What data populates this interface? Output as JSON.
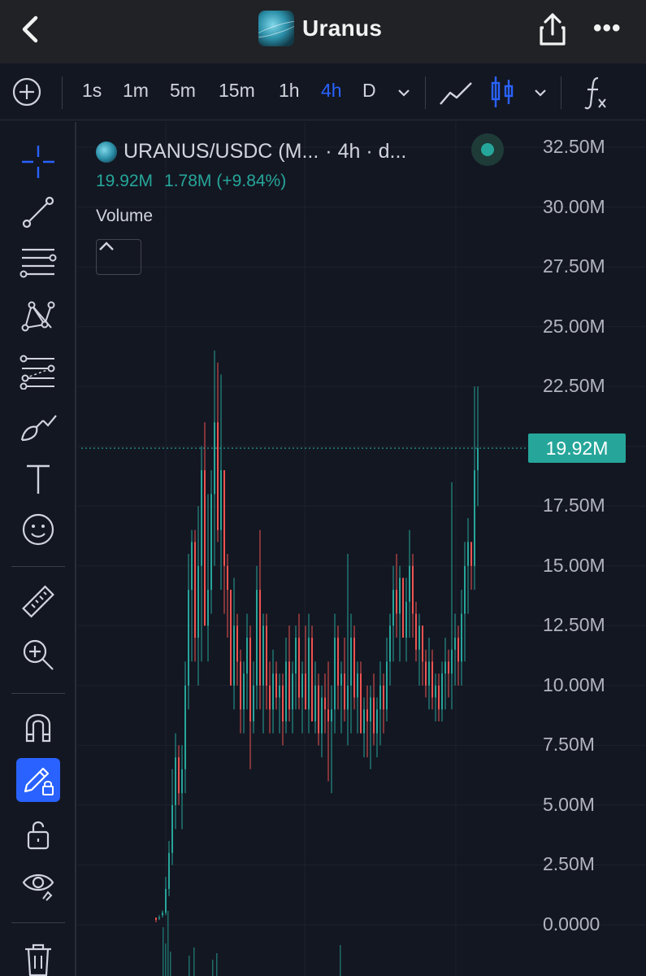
{
  "header": {
    "title": "Uranus",
    "more_label": "•••"
  },
  "toolbar": {
    "intervals": [
      {
        "label": "1s",
        "active": false
      },
      {
        "label": "1m",
        "active": false
      },
      {
        "label": "5m",
        "active": false
      },
      {
        "label": "15m",
        "active": false
      },
      {
        "label": "1h",
        "active": false
      },
      {
        "label": "4h",
        "active": true
      },
      {
        "label": "D",
        "active": false
      }
    ],
    "accent_color": "#2962ff"
  },
  "left_tools": [
    "crosshair-icon",
    "trend-line-icon",
    "horizontal-lines-icon",
    "pattern-icon",
    "fib-icon",
    "brush-icon",
    "text-icon",
    "emoji-icon",
    "ruler-icon",
    "zoom-in-icon",
    "magnet-icon",
    "lock-drawing-icon",
    "unlock-icon",
    "eye-icon",
    "trash-icon"
  ],
  "legend": {
    "symbol": "URANUS/USDC (M...",
    "interval": "· 4h · d...",
    "value": "19.92M",
    "change": "1.78M",
    "change_pct": "(+9.84%)",
    "indicator": "Volume"
  },
  "chart_data": {
    "type": "bar",
    "ylabel": "",
    "ylim": [
      0,
      32500000
    ],
    "yticks": [
      "32.50M",
      "30.00M",
      "27.50M",
      "25.00M",
      "22.50M",
      "20.00M",
      "17.50M",
      "15.00M",
      "12.50M",
      "10.00M",
      "7.50M",
      "5.00M",
      "2.50M",
      "0.0000"
    ],
    "last_value_label": "19.92M",
    "last_value": 19920000,
    "up_color": "#26a69a",
    "down_color": "#ef5350",
    "grid": true,
    "candles_M": [
      [
        0.3,
        0.1,
        0.2,
        0.3
      ],
      [
        0.3,
        0.2,
        0.3,
        0.4
      ],
      [
        0.4,
        0.3,
        0.5,
        0.6
      ],
      [
        0.5,
        0.4,
        1.5,
        2
      ],
      [
        1.5,
        1.2,
        3,
        3.5
      ],
      [
        3,
        2.5,
        5,
        6.5
      ],
      [
        5,
        4,
        7,
        8
      ],
      [
        7,
        5,
        5.5,
        7.5
      ],
      [
        5.5,
        4,
        6.5,
        7.5
      ],
      [
        6.5,
        5.5,
        10,
        11
      ],
      [
        10,
        9,
        14,
        15.5
      ],
      [
        14,
        11,
        16,
        16.5
      ],
      [
        16,
        11,
        12,
        16.5
      ],
      [
        12,
        10,
        15,
        17.5
      ],
      [
        15,
        11,
        19,
        20
      ],
      [
        19,
        13,
        12.5,
        21
      ],
      [
        12.5,
        11,
        14,
        18
      ],
      [
        14,
        13,
        18,
        19
      ],
      [
        18,
        15,
        21,
        24
      ],
      [
        21,
        16,
        16.5,
        23.5
      ],
      [
        16.5,
        14,
        19,
        23
      ],
      [
        19,
        13,
        15,
        16
      ],
      [
        15,
        12,
        14,
        15.5
      ],
      [
        14,
        11,
        10,
        14
      ],
      [
        10,
        9,
        12.5,
        14.5
      ],
      [
        12.5,
        10,
        11,
        13
      ],
      [
        11,
        8,
        9,
        11.5
      ],
      [
        9,
        8,
        10.5,
        11
      ],
      [
        10.5,
        9,
        12,
        13
      ],
      [
        12,
        6.5,
        8.5,
        12.5
      ],
      [
        8.5,
        8,
        10,
        11
      ],
      [
        10,
        9,
        14,
        15
      ],
      [
        14,
        9,
        10,
        16.5
      ],
      [
        10,
        8,
        12.5,
        13
      ],
      [
        12.5,
        9,
        10,
        13
      ],
      [
        10,
        8,
        9,
        11
      ],
      [
        9,
        8,
        10.5,
        11.5
      ],
      [
        10.5,
        9,
        9.5,
        11
      ],
      [
        9.5,
        8,
        10,
        10.5
      ],
      [
        10,
        7.5,
        8.5,
        10.5
      ],
      [
        8.5,
        8,
        11,
        12
      ],
      [
        11,
        8.5,
        9,
        12.5
      ],
      [
        9,
        8,
        10.5,
        11
      ],
      [
        10.5,
        9,
        12,
        12.5
      ],
      [
        12,
        9,
        9.5,
        13
      ],
      [
        9.5,
        8,
        10.5,
        11
      ],
      [
        10.5,
        9,
        9,
        12.5
      ],
      [
        9,
        8,
        12,
        13
      ],
      [
        12,
        9,
        8.5,
        12.5
      ],
      [
        8.5,
        8,
        10,
        11
      ],
      [
        10,
        7.5,
        8,
        10.5
      ],
      [
        8,
        7,
        9.5,
        10
      ],
      [
        9.5,
        8,
        9,
        10.5
      ],
      [
        9,
        6,
        8.5,
        11
      ],
      [
        8.5,
        5.5,
        9,
        10
      ],
      [
        9,
        8,
        12,
        13
      ],
      [
        12,
        9,
        10,
        12.5
      ],
      [
        10,
        8,
        10.5,
        11
      ],
      [
        10.5,
        8.5,
        9,
        12
      ],
      [
        9,
        7.5,
        10,
        15.5
      ],
      [
        10,
        8,
        12,
        13
      ],
      [
        12,
        9,
        9.5,
        12.5
      ],
      [
        9.5,
        8,
        10.5,
        11
      ],
      [
        10.5,
        8.5,
        8,
        11
      ],
      [
        8,
        7,
        9,
        9.5
      ],
      [
        9,
        7,
        8.5,
        10
      ],
      [
        8.5,
        6.5,
        9.5,
        10
      ],
      [
        9.5,
        7.5,
        8,
        10.5
      ],
      [
        8,
        7,
        9,
        9.5
      ],
      [
        9,
        7.5,
        10,
        11
      ],
      [
        10,
        8,
        9,
        10.5
      ],
      [
        9,
        8.5,
        11,
        12
      ],
      [
        11,
        10,
        12.5,
        13
      ],
      [
        12.5,
        11,
        14,
        15
      ],
      [
        14,
        12,
        13,
        15.5
      ],
      [
        13,
        11,
        14.5,
        15
      ],
      [
        14.5,
        12,
        12,
        14.5
      ],
      [
        12,
        11,
        13.5,
        14.5
      ],
      [
        13.5,
        12,
        15,
        16.5
      ],
      [
        15,
        12,
        13,
        15.5
      ],
      [
        13,
        11,
        11.5,
        13.5
      ],
      [
        11.5,
        10,
        12.5,
        13
      ],
      [
        12.5,
        10,
        11,
        12.5
      ],
      [
        11,
        9.5,
        10,
        11.5
      ],
      [
        10,
        9,
        11,
        12
      ],
      [
        11,
        9,
        9.5,
        11.5
      ],
      [
        9.5,
        8.5,
        10,
        10.5
      ],
      [
        10,
        8.5,
        9,
        10.5
      ],
      [
        9,
        8.5,
        10.5,
        11
      ],
      [
        10.5,
        9,
        11,
        12
      ],
      [
        11,
        9.5,
        10.5,
        11.5
      ],
      [
        10.5,
        9,
        11.5,
        18.5
      ],
      [
        11.5,
        10,
        12,
        13
      ],
      [
        12,
        10,
        11,
        12.5
      ],
      [
        11,
        10,
        13,
        14
      ],
      [
        13,
        11,
        15,
        16
      ],
      [
        15,
        13,
        16,
        17
      ],
      [
        16,
        14,
        15,
        16
      ],
      [
        15,
        14,
        19,
        22.5
      ],
      [
        19,
        17.5,
        19.92,
        22.5
      ]
    ]
  }
}
